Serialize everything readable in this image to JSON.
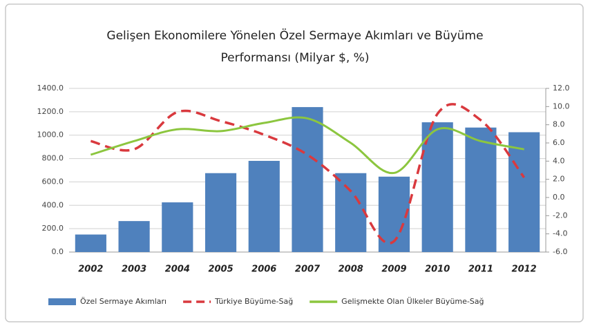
{
  "chart_data": {
    "type": "bar-line",
    "title": "Gelişen Ekonomilere Yönelen Özel Sermaye Akımları ve Büyüme",
    "subtitle": "Performansı  (Milyar $, %)",
    "categories": [
      "2002",
      "2003",
      "2004",
      "2005",
      "2006",
      "2007",
      "2008",
      "2009",
      "2010",
      "2011",
      "2012"
    ],
    "series": [
      {
        "name": "Özel Sermaye Akımları",
        "type": "bar",
        "color": "#4f81bd",
        "axis": "y",
        "values": [
          150,
          265,
          425,
          675,
          780,
          1240,
          675,
          645,
          1110,
          1065,
          1025
        ]
      },
      {
        "name": "Türkiye Büyüme-Sağ",
        "type": "line",
        "dash": true,
        "color": "#d9393e",
        "axis": "y2",
        "values": [
          6.2,
          5.3,
          9.4,
          8.4,
          6.9,
          4.7,
          0.7,
          -4.8,
          9.2,
          8.5,
          2.2
        ]
      },
      {
        "name": "Gelişmekte Olan Ülkeler Büyüme-Sağ",
        "type": "line",
        "dash": false,
        "color": "#8cc63f",
        "axis": "y2",
        "values": [
          4.7,
          6.2,
          7.5,
          7.3,
          8.2,
          8.7,
          6.0,
          2.7,
          7.5,
          6.2,
          5.3
        ]
      }
    ],
    "ylim": [
      0,
      1400
    ],
    "yticks": [
      {
        "value": 0,
        "label": "0.0"
      },
      {
        "value": 200,
        "label": "200.0"
      },
      {
        "value": 400,
        "label": "400.0"
      },
      {
        "value": 600,
        "label": "600.0"
      },
      {
        "value": 800,
        "label": "800.0"
      },
      {
        "value": 1000,
        "label": "1000.0"
      },
      {
        "value": 1200,
        "label": "1200.0"
      },
      {
        "value": 1400,
        "label": "1400.0"
      }
    ],
    "y2lim": [
      -6,
      12
    ],
    "y2ticks": [
      {
        "value": -6,
        "label": "-6.0"
      },
      {
        "value": -4,
        "label": "-4.0"
      },
      {
        "value": -2,
        "label": "-2.0"
      },
      {
        "value": 0,
        "label": "0.0"
      },
      {
        "value": 2,
        "label": "2.0"
      },
      {
        "value": 4,
        "label": "4.0"
      },
      {
        "value": 6,
        "label": "6.0"
      },
      {
        "value": 8,
        "label": "8.0"
      },
      {
        "value": 10,
        "label": "10.0"
      },
      {
        "value": 12,
        "label": "12.0"
      }
    ],
    "grid": true,
    "legend": "bottom"
  }
}
